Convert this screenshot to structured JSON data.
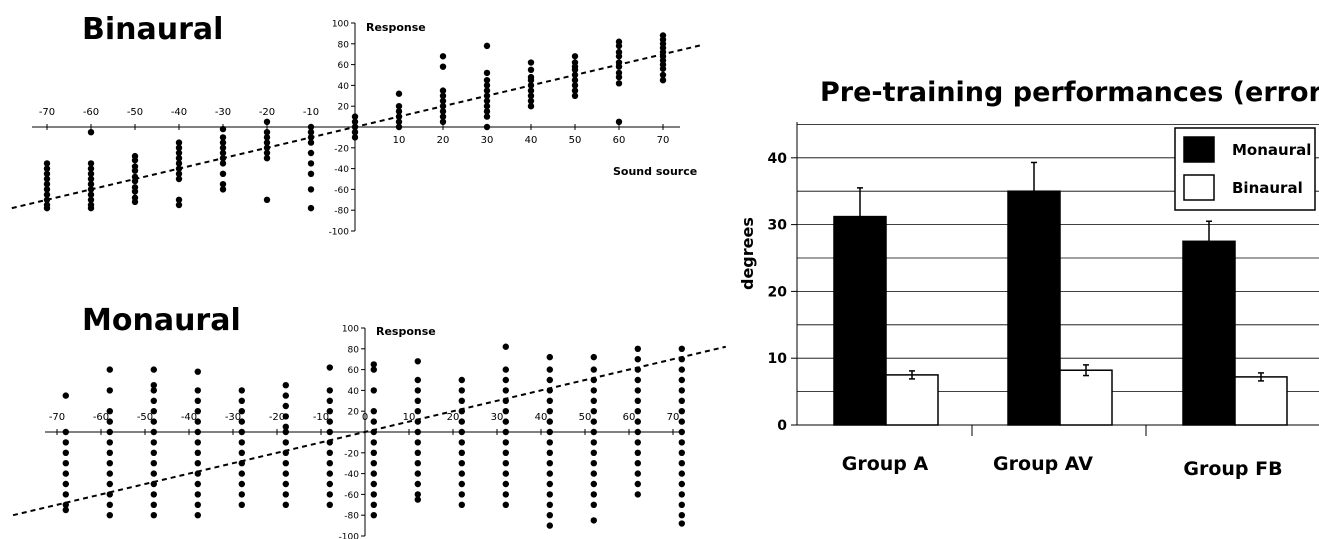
{
  "chart_data": [
    {
      "type": "scatter",
      "title": "Binaural",
      "xlabel": "Sound source",
      "ylabel": "Response",
      "xlim": [
        -75,
        80
      ],
      "ylim": [
        -100,
        100
      ],
      "x_ticks": [
        -70,
        -60,
        -50,
        -40,
        -30,
        -20,
        -10,
        10,
        20,
        30,
        40,
        50,
        60,
        70
      ],
      "y_ticks": [
        -100,
        -80,
        -60,
        -40,
        -20,
        20,
        40,
        60,
        80,
        100
      ],
      "reference_line": "y = x (dashed)",
      "series": [
        {
          "x": -70,
          "values": [
            -35,
            -40,
            -45,
            -50,
            -55,
            -60,
            -65,
            -70,
            -75,
            -78
          ]
        },
        {
          "x": -60,
          "values": [
            -5,
            -35,
            -40,
            -45,
            -50,
            -55,
            -60,
            -65,
            -70,
            -75,
            -78
          ]
        },
        {
          "x": -50,
          "values": [
            -28,
            -32,
            -38,
            -42,
            -48,
            -52,
            -58,
            -62,
            -68,
            -72
          ]
        },
        {
          "x": -40,
          "values": [
            -15,
            -20,
            -25,
            -30,
            -35,
            -40,
            -45,
            -50,
            -70,
            -75
          ]
        },
        {
          "x": -30,
          "values": [
            -2,
            -10,
            -15,
            -20,
            -25,
            -30,
            -35,
            -45,
            -55,
            -60
          ]
        },
        {
          "x": -20,
          "values": [
            5,
            -5,
            -10,
            -15,
            -20,
            -25,
            -30,
            -70
          ]
        },
        {
          "x": -10,
          "values": [
            0,
            -5,
            -10,
            -15,
            -25,
            -35,
            -45,
            -60,
            -78
          ]
        },
        {
          "x": 0,
          "values": [
            10,
            5,
            0,
            -5,
            -10
          ]
        },
        {
          "x": 10,
          "values": [
            32,
            20,
            15,
            10,
            5,
            0
          ]
        },
        {
          "x": 20,
          "values": [
            68,
            58,
            35,
            30,
            25,
            20,
            15,
            10,
            5
          ]
        },
        {
          "x": 30,
          "values": [
            78,
            52,
            45,
            40,
            35,
            30,
            25,
            20,
            15,
            10,
            0
          ]
        },
        {
          "x": 40,
          "values": [
            62,
            55,
            48,
            45,
            40,
            35,
            30,
            25,
            20
          ]
        },
        {
          "x": 50,
          "values": [
            68,
            62,
            58,
            55,
            50,
            45,
            40,
            35,
            30
          ]
        },
        {
          "x": 60,
          "values": [
            82,
            78,
            72,
            68,
            62,
            58,
            52,
            48,
            42,
            5
          ]
        },
        {
          "x": 70,
          "values": [
            88,
            84,
            80,
            76,
            72,
            68,
            64,
            60,
            56,
            50,
            45
          ]
        }
      ]
    },
    {
      "type": "scatter",
      "title": "Monaural",
      "ylabel": "Response",
      "xlim": [
        -75,
        80
      ],
      "ylim": [
        -100,
        100
      ],
      "x_ticks": [
        -70,
        -60,
        -50,
        -40,
        -30,
        -20,
        -10,
        0,
        10,
        20,
        30,
        40,
        50,
        60,
        70
      ],
      "y_ticks": [
        -100,
        -80,
        -60,
        -40,
        -20,
        20,
        40,
        60,
        80,
        100
      ],
      "reference_line": "y = x (dashed)",
      "series": [
        {
          "x": -68,
          "values": [
            35,
            0,
            -10,
            -20,
            -30,
            -40,
            -50,
            -60,
            -70,
            -75
          ]
        },
        {
          "x": -58,
          "values": [
            60,
            40,
            20,
            10,
            0,
            -10,
            -20,
            -30,
            -40,
            -50,
            -60,
            -70,
            -80
          ]
        },
        {
          "x": -48,
          "values": [
            60,
            45,
            40,
            30,
            20,
            10,
            0,
            -10,
            -20,
            -30,
            -40,
            -50,
            -60,
            -70,
            -80
          ]
        },
        {
          "x": -38,
          "values": [
            58,
            40,
            30,
            20,
            10,
            0,
            -10,
            -20,
            -30,
            -40,
            -50,
            -60,
            -70,
            -80
          ]
        },
        {
          "x": -28,
          "values": [
            40,
            30,
            20,
            10,
            0,
            -10,
            -20,
            -30,
            -40,
            -50,
            -60,
            -70
          ]
        },
        {
          "x": -18,
          "values": [
            45,
            35,
            25,
            15,
            5,
            0,
            -10,
            -20,
            -30,
            -40,
            -50,
            -60,
            -70
          ]
        },
        {
          "x": -8,
          "values": [
            62,
            40,
            30,
            20,
            10,
            0,
            -10,
            -20,
            -30,
            -40,
            -50,
            -60,
            -70
          ]
        },
        {
          "x": 2,
          "values": [
            65,
            60,
            40,
            20,
            10,
            0,
            -10,
            -20,
            -30,
            -40,
            -50,
            -60,
            -70,
            -80
          ]
        },
        {
          "x": 12,
          "values": [
            68,
            50,
            40,
            30,
            20,
            10,
            0,
            -10,
            -20,
            -30,
            -40,
            -50,
            -60,
            -65
          ]
        },
        {
          "x": 22,
          "values": [
            50,
            40,
            30,
            20,
            10,
            0,
            -10,
            -20,
            -30,
            -40,
            -50,
            -60,
            -70
          ]
        },
        {
          "x": 32,
          "values": [
            82,
            60,
            50,
            40,
            30,
            20,
            10,
            0,
            -10,
            -20,
            -30,
            -40,
            -50,
            -60,
            -70
          ]
        },
        {
          "x": 42,
          "values": [
            72,
            60,
            50,
            40,
            30,
            20,
            10,
            0,
            -10,
            -20,
            -30,
            -40,
            -50,
            -60,
            -70,
            -80,
            -90
          ]
        },
        {
          "x": 52,
          "values": [
            72,
            60,
            50,
            40,
            30,
            20,
            10,
            0,
            -10,
            -20,
            -30,
            -40,
            -50,
            -60,
            -70,
            -85
          ]
        },
        {
          "x": 62,
          "values": [
            80,
            70,
            60,
            50,
            40,
            30,
            20,
            10,
            0,
            -10,
            -20,
            -30,
            -40,
            -50,
            -60
          ]
        },
        {
          "x": 72,
          "values": [
            80,
            70,
            60,
            50,
            40,
            30,
            20,
            10,
            0,
            -10,
            -20,
            -30,
            -40,
            -50,
            -60,
            -70,
            -80,
            -88
          ]
        }
      ]
    },
    {
      "type": "bar",
      "title": "Pre-training performances (errors )",
      "ylabel": "degrees",
      "categories": [
        "Group A",
        "Group AV",
        "Group FB"
      ],
      "ylim": [
        0,
        45
      ],
      "y_ticks": [
        0,
        10,
        20,
        30,
        40
      ],
      "grid": true,
      "legend_position": "top-right",
      "series": [
        {
          "name": "Monaural",
          "color": "#000000",
          "values": [
            31.2,
            35.0,
            27.5
          ],
          "errors": [
            4.3,
            4.3,
            3.0
          ]
        },
        {
          "name": "Binaural",
          "color": "#ffffff",
          "values": [
            7.5,
            8.2,
            7.2
          ],
          "errors": [
            0.6,
            0.8,
            0.6
          ]
        }
      ]
    }
  ]
}
